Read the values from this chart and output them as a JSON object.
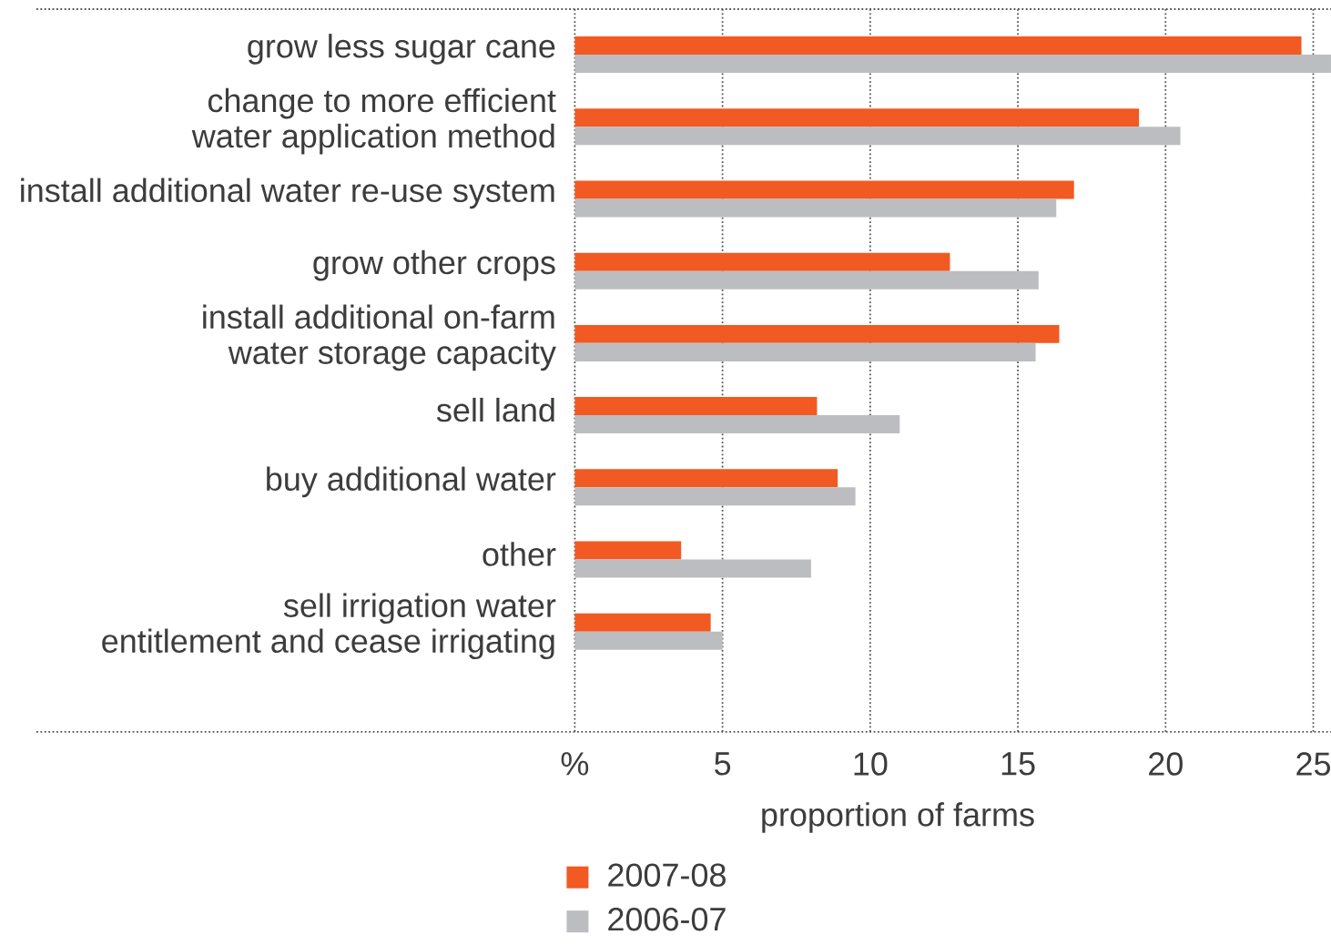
{
  "chart_data": {
    "type": "bar",
    "orientation": "horizontal",
    "categories": [
      "grow less sugar cane",
      "change to more efficient\nwater application method",
      "install additional water re-use system",
      "grow other crops",
      "install additional on-farm\nwater storage capacity",
      "sell land",
      "buy additional water",
      "other",
      "sell irrigation water\nentitlement and cease irrigating"
    ],
    "series": [
      {
        "name": "2007-08",
        "color": "#f15a22",
        "values": [
          24.6,
          19.1,
          16.9,
          12.7,
          16.4,
          8.2,
          8.9,
          3.6,
          4.6
        ]
      },
      {
        "name": "2006-07",
        "color": "#bcbdc0",
        "values": [
          25.6,
          20.5,
          16.3,
          15.7,
          15.6,
          11.0,
          9.5,
          8.0,
          5.0
        ]
      }
    ],
    "xlabel": "proportion of farms",
    "xlim": [
      0,
      25.6
    ],
    "xticks": [
      {
        "value": 0,
        "label": "%"
      },
      5,
      10,
      15,
      20,
      25
    ],
    "grid": "x",
    "legend": "bottom"
  }
}
